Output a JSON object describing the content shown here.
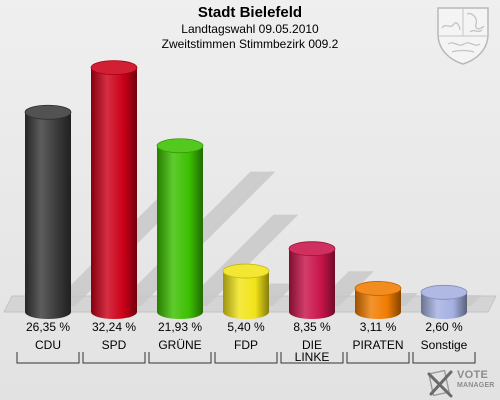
{
  "header": {
    "title": "Stadt Bielefeld",
    "subtitle1": "Landtagswahl 09.05.2010",
    "subtitle2": "Zweitstimmen Stimmbezirk 009.2"
  },
  "brand": {
    "line1": "VOTE",
    "line2": "MANAGER",
    "logo_icon": "ballot-cross-icon"
  },
  "crest_icon": "nrw-coat-of-arms-icon",
  "chart_data": {
    "type": "bar",
    "categories": [
      "CDU",
      "SPD",
      "GRÜNE",
      "FDP",
      "DIE LINKE",
      "PIRATEN",
      "Sonstige"
    ],
    "category_lines": [
      [
        "CDU"
      ],
      [
        "SPD"
      ],
      [
        "GRÜNE"
      ],
      [
        "FDP"
      ],
      [
        "DIE",
        "LINKE"
      ],
      [
        "PIRATEN"
      ],
      [
        "Sonstige"
      ]
    ],
    "values": [
      26.35,
      32.24,
      21.93,
      5.4,
      8.35,
      3.11,
      2.6
    ],
    "value_labels": [
      "26,35 %",
      "32,24 %",
      "21,93 %",
      "5,40 %",
      "8,35 %",
      "3,11 %",
      "2,60 %"
    ],
    "colors": [
      "#3a3a3a",
      "#cc0018",
      "#3cc000",
      "#f2e418",
      "#c8144a",
      "#f07c00",
      "#a4b0e0"
    ],
    "ylim": [
      0,
      35
    ],
    "grid": false,
    "legend": "none"
  }
}
